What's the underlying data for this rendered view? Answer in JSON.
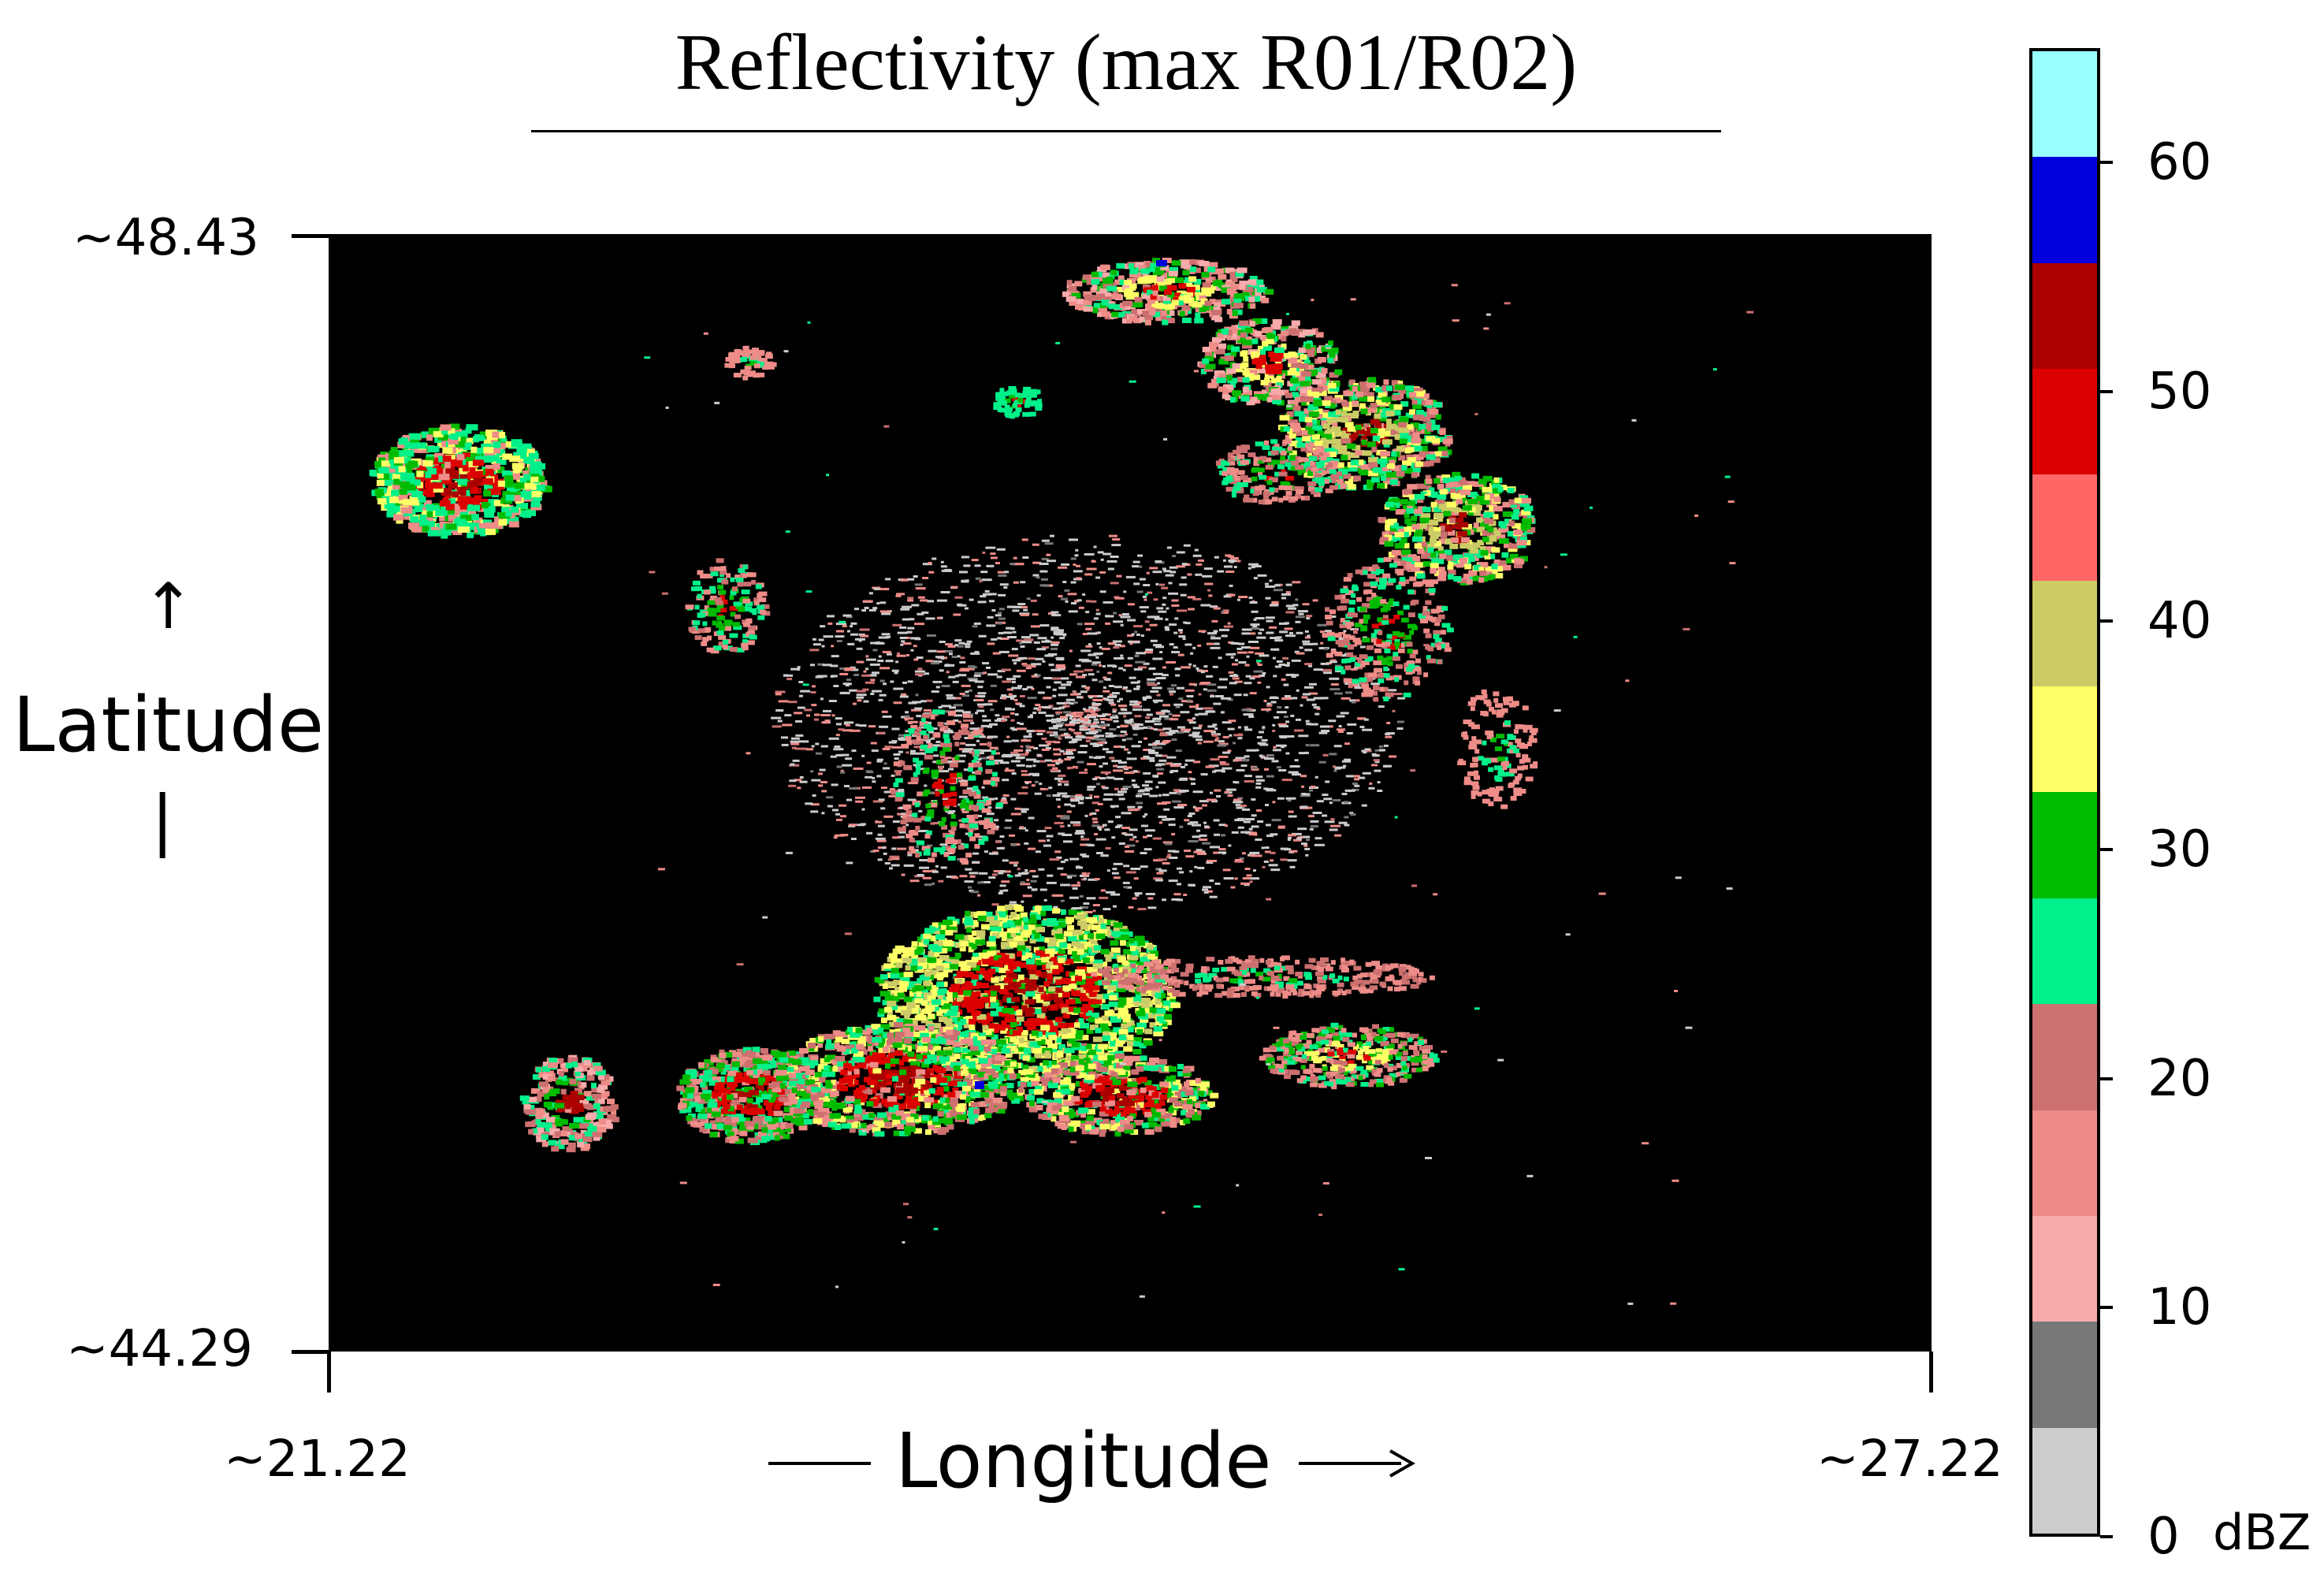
{
  "title": "Reflectivity (max R01/R02)",
  "axes": {
    "latitude": {
      "label": "Latitude",
      "arrow_up": "↑",
      "bar": "|",
      "top_label": "~48.43",
      "bottom_label": "~44.29",
      "range": [
        44.29,
        48.43
      ]
    },
    "longitude": {
      "label": "Longitude",
      "left_label": "~21.22",
      "right_label": "~27.22",
      "range": [
        21.22,
        27.22
      ]
    }
  },
  "colorbar": {
    "unit": "dBZ",
    "ticks": [
      {
        "value": 0,
        "label": "0"
      },
      {
        "value": 10,
        "label": "10"
      },
      {
        "value": 20,
        "label": "20"
      },
      {
        "value": 30,
        "label": "30"
      },
      {
        "value": 40,
        "label": "40"
      },
      {
        "value": 50,
        "label": "50"
      },
      {
        "value": 60,
        "label": "60"
      }
    ],
    "range": [
      0,
      65
    ],
    "colors": [
      "#cccccc",
      "#777777",
      "#f9aaaa",
      "#ee8c88",
      "#cc7070",
      "#00f08a",
      "#00bb00",
      "#ffff66",
      "#cccc66",
      "#ff6666",
      "#dd0000",
      "#aa0000",
      "#0000dd",
      "#99ffff"
    ]
  },
  "map": {
    "background": "#000000",
    "echo_regions": [
      {
        "name": "northwest-cell",
        "lon": 21.9,
        "lat": 47.7
      },
      {
        "name": "northern-band",
        "lon": 24.3,
        "lat": 47.8
      },
      {
        "name": "central-clutter",
        "lon": 24.3,
        "lat": 46.7
      },
      {
        "name": "southern-complex",
        "lon": 23.6,
        "lat": 45.3
      },
      {
        "name": "southwest-cell",
        "lon": 22.2,
        "lat": 44.9
      }
    ]
  }
}
